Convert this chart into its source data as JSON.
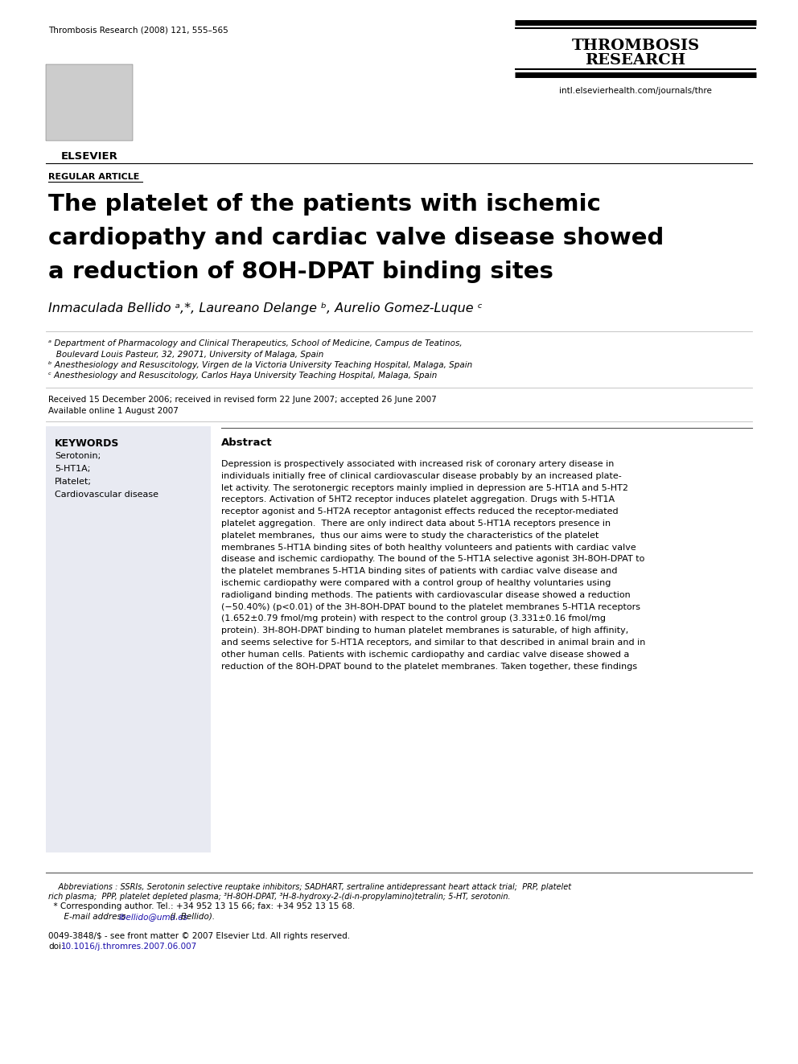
{
  "journal_ref": "Thrombosis Research (2008) 121, 555–565",
  "journal_name_line1": "THROMBOSIS",
  "journal_name_line2": "RESEARCH",
  "website": "intl.elsevierhealth.com/journals/thre",
  "article_type": "REGULAR ARTICLE",
  "title_line1": "The platelet of the patients with ischemic",
  "title_line2": "cardiopathy and cardiac valve disease showed",
  "title_line3": "a reduction of 8OH-DPAT binding sites",
  "authors": "Inmaculada Bellido ᵃ,*, Laureano Delange ᵇ, Aurelio Gomez-Luque ᶜ",
  "affil_a1": "ᵃ Department of Pharmacology and Clinical Therapeutics, School of Medicine, Campus de Teatinos,",
  "affil_a2": "   Boulevard Louis Pasteur, 32, 29071, University of Malaga, Spain",
  "affil_b": "ᵇ Anesthesiology and Resuscitology, Virgen de la Victoria University Teaching Hospital, Malaga, Spain",
  "affil_c": "ᶜ Anesthesiology and Resuscitology, Carlos Haya University Teaching Hospital, Malaga, Spain",
  "received": "Received 15 December 2006; received in revised form 22 June 2007; accepted 26 June 2007",
  "available": "Available online 1 August 2007",
  "keywords_title": "KEYWORDS",
  "keywords": [
    "Serotonin;",
    "5-HT1A;",
    "Platelet;",
    "Cardiovascular disease"
  ],
  "abstract_title": "Abstract",
  "abstract_lines": [
    "Depression is prospectively associated with increased risk of coronary artery disease in",
    "individuals initially free of clinical cardiovascular disease probably by an increased plate-",
    "let activity. The serotonergic receptors mainly implied in depression are 5-HT1A and 5-HT2",
    "receptors. Activation of 5HT2 receptor induces platelet aggregation. Drugs with 5-HT1A",
    "receptor agonist and 5-HT2A receptor antagonist effects reduced the receptor-mediated",
    "platelet aggregation.  There are only indirect data about 5-HT1A receptors presence in",
    "platelet membranes,  thus our aims were to study the characteristics of the platelet",
    "membranes 5-HT1A binding sites of both healthy volunteers and patients with cardiac valve",
    "disease and ischemic cardiopathy. The bound of the 5-HT1A selective agonist 3H-8OH-DPAT to",
    "the platelet membranes 5-HT1A binding sites of patients with cardiac valve disease and",
    "ischemic cardiopathy were compared with a control group of healthy voluntaries using",
    "radioligand binding methods. The patients with cardiovascular disease showed a reduction",
    "(−50.40%) (p<0.01) of the 3H-8OH-DPAT bound to the platelet membranes 5-HT1A receptors",
    "(1.652±0.79 fmol/mg protein) with respect to the control group (3.331±0.16 fmol/mg",
    "protein). 3H-8OH-DPAT binding to human platelet membranes is saturable, of high affinity,",
    "and seems selective for 5-HT1A receptors, and similar to that described in animal brain and in",
    "other human cells. Patients with ischemic cardiopathy and cardiac valve disease showed a",
    "reduction of the 8OH-DPAT bound to the platelet membranes. Taken together, these findings"
  ],
  "footnote_abbrev_line1": "    Abbreviations : SSRIs, Serotonin selective reuptake inhibitors; SADHART, sertraline antidepressant heart attack trial;  PRP, platelet",
  "footnote_abbrev_line2": "rich plasma;  PPP, platelet depleted plasma; ³H-8OH-DPAT, ³H-8-hydroxy-2-(di-n-propylamino)tetralin; 5-HT, serotonin.",
  "footnote_corresponding": "  * Corresponding author. Tel.: +34 952 13 15 66; fax: +34 952 13 15 68.",
  "footnote_email_prefix": "      E-mail address: ",
  "footnote_email_link": "ibellido@uma.es",
  "footnote_email_suffix": " (I. Bellido).",
  "footnote_issn": "0049-3848/$ - see front matter © 2007 Elsevier Ltd. All rights reserved.",
  "footnote_doi_prefix": "doi:",
  "footnote_doi_link": "10.1016/j.thromres.2007.06.007",
  "bg_color": "#ffffff",
  "keyword_bg": "#e8eaf2",
  "text_color": "#000000",
  "link_color": "#1a0dab"
}
